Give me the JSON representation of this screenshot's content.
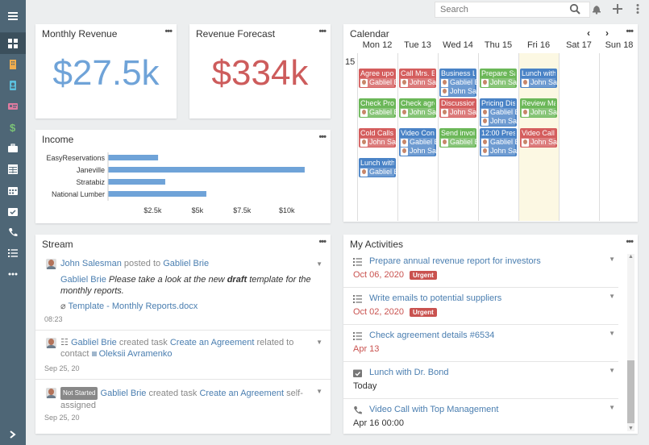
{
  "search": {
    "placeholder": "Search"
  },
  "colors": {
    "revenue": "#6fa3d8",
    "forecast": "#cd5c5c",
    "bar": "#6fa3d8",
    "ev_red": "#d45d5d",
    "ev_blue": "#4a83c6",
    "ev_green": "#6bb758",
    "urgent": "#c9524f"
  },
  "sidebar": {
    "items": [
      {
        "icon": "dashboard-icon",
        "color": "#ffffff"
      },
      {
        "icon": "building-icon",
        "color": "#f0ad4e"
      },
      {
        "icon": "contact-icon",
        "color": "#5bc0de"
      },
      {
        "icon": "id-card-icon",
        "color": "#e07ba0"
      },
      {
        "icon": "dollar-icon",
        "color": "#7cc576"
      },
      {
        "icon": "briefcase-icon",
        "color": "#ffffff"
      },
      {
        "icon": "table-icon",
        "color": "#ffffff"
      },
      {
        "icon": "calendar-icon",
        "color": "#ffffff"
      },
      {
        "icon": "calendar-check-icon",
        "color": "#ffffff"
      },
      {
        "icon": "phone-icon",
        "color": "#ffffff"
      },
      {
        "icon": "tasks-icon",
        "color": "#ffffff"
      },
      {
        "icon": "more-icon",
        "color": "#ffffff"
      }
    ]
  },
  "monthly_revenue": {
    "title": "Monthly Revenue",
    "value": "$27.5k"
  },
  "revenue_forecast": {
    "title": "Revenue Forecast",
    "value": "$334k"
  },
  "income": {
    "title": "Income",
    "chart_data": {
      "type": "bar",
      "orientation": "horizontal",
      "categories": [
        "EasyReservations",
        "Janeville",
        "Stratabiz",
        "National Lumber"
      ],
      "values": [
        2800,
        11000,
        3200,
        5500
      ],
      "xlim": [
        0,
        11500
      ],
      "xticks": [
        2500,
        5000,
        7500,
        10000
      ],
      "xtick_labels": [
        "$2.5k",
        "$5k",
        "$7.5k",
        "$10k"
      ]
    }
  },
  "calendar": {
    "title": "Calendar",
    "hour": "15",
    "days": [
      "Mon 12",
      "Tue 13",
      "Wed 14",
      "Thu 15",
      "Fri 16",
      "Sat 17",
      "Sun 18"
    ],
    "events": [
      {
        "day": 0,
        "row": 0,
        "title": "Agree upon",
        "users": [
          "Gabliel Brie"
        ],
        "color": "red"
      },
      {
        "day": 0,
        "row": 1,
        "title": "Check Prop",
        "users": [
          "Gabliel Brie"
        ],
        "color": "green"
      },
      {
        "day": 0,
        "row": 2,
        "title": "Cold Calls",
        "users": [
          "John Sales"
        ],
        "color": "red"
      },
      {
        "day": 0,
        "row": 3,
        "title": "Lunch with",
        "users": [
          "Gabliel Brie"
        ],
        "color": "blue"
      },
      {
        "day": 1,
        "row": 0,
        "title": "Call Mrs. B",
        "users": [
          "John Sales"
        ],
        "color": "red"
      },
      {
        "day": 1,
        "row": 1,
        "title": "Check agre",
        "users": [
          "John Sales"
        ],
        "color": "green"
      },
      {
        "day": 1,
        "row": 2,
        "title": "Video Conf",
        "users": [
          "Gabliel Brie",
          "John Sales"
        ],
        "color": "blue"
      },
      {
        "day": 2,
        "row": 0,
        "title": "Business L",
        "users": [
          "Gabliel Brie",
          "John Sales"
        ],
        "color": "blue"
      },
      {
        "day": 2,
        "row": 1,
        "title": "Discussion",
        "users": [
          "John Sales"
        ],
        "color": "red"
      },
      {
        "day": 2,
        "row": 2,
        "title": "Send invoi",
        "users": [
          "Gabliel Brie"
        ],
        "color": "green"
      },
      {
        "day": 3,
        "row": 0,
        "title": "Prepare Sa",
        "users": [
          "John Sales"
        ],
        "color": "green"
      },
      {
        "day": 3,
        "row": 1,
        "title": "Pricing Dis",
        "users": [
          "Gabliel Brie",
          "John Sales"
        ],
        "color": "blue"
      },
      {
        "day": 3,
        "row": 2,
        "title": "12:00 Pres",
        "users": [
          "Gabliel Brie",
          "John Sales"
        ],
        "color": "blue"
      },
      {
        "day": 4,
        "row": 0,
        "title": "Lunch with",
        "users": [
          "John Sales"
        ],
        "color": "blue"
      },
      {
        "day": 4,
        "row": 1,
        "title": "Review Ma",
        "users": [
          "John Sales"
        ],
        "color": "green"
      },
      {
        "day": 4,
        "row": 2,
        "title": "Video Call",
        "users": [
          "John Sales"
        ],
        "color": "red"
      }
    ]
  },
  "stream": {
    "title": "Stream",
    "items": [
      {
        "author": "John Salesman",
        "action": "posted to",
        "target": "Gabliel Brie",
        "mention": "Gabliel Brie",
        "text_a": "Please take a look at the new",
        "text_b": "draft",
        "text_c": "template for the monthly reports.",
        "attachment": "Template - Monthly Reports.docx",
        "time": "08:23"
      },
      {
        "author": "Gabliel Brie",
        "action": "created task",
        "task": "Create an Agreement",
        "related": "related to",
        "contact_label": "contact",
        "contact": "Oleksii Avramenko",
        "time": "Sep 25, 20"
      },
      {
        "badge": "Not Started",
        "author": "Gabliel Brie",
        "action": "created task",
        "task": "Create an Agreement",
        "self": "self-assigned",
        "time": "Sep 25, 20"
      }
    ]
  },
  "activities": {
    "title": "My Activities",
    "items": [
      {
        "icon": "tasks-icon",
        "title": "Prepare annual revenue report for investors",
        "date": "Oct 06, 2020",
        "urgent": "Urgent",
        "date_color": "#c9524f"
      },
      {
        "icon": "tasks-icon",
        "title": "Write emails to potential suppliers",
        "date": "Oct 02, 2020",
        "urgent": "Urgent",
        "date_color": "#c9524f"
      },
      {
        "icon": "tasks-icon",
        "title": "Check agreement details #6534",
        "date": "Apr 13",
        "urgent": "",
        "date_color": "#c9524f"
      },
      {
        "icon": "calendar-check-icon",
        "title": "Lunch with Dr. Bond",
        "date": "Today",
        "urgent": "",
        "date_color": "#333333"
      },
      {
        "icon": "phone-icon",
        "title": "Video Call with Top Management",
        "date": "Apr 16 00:00",
        "urgent": "",
        "date_color": "#333333"
      }
    ]
  }
}
